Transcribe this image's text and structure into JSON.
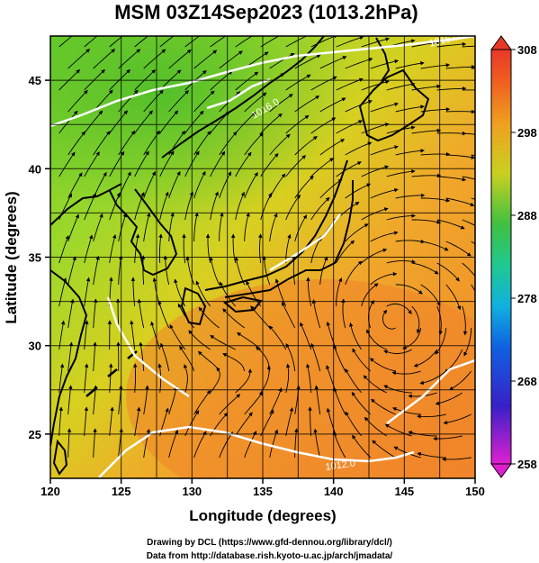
{
  "title": "MSM 03Z14Sep2023 (1013.2hPa)",
  "map": {
    "lon_range": [
      120,
      150
    ],
    "lat_range": [
      22.5,
      47.5
    ],
    "x_label": "Longitude (degrees)",
    "y_label": "Latitude  (degrees)",
    "x_ticks": [
      "120",
      "125",
      "130",
      "135",
      "140",
      "145",
      "150"
    ],
    "y_ticks": [
      "25",
      "30",
      "35",
      "40",
      "45"
    ],
    "contour_labels": [
      "1016.0",
      "1016.0",
      "1012.0"
    ],
    "colors": {
      "cold": "#4bbf2a",
      "warm": "#f08a2a",
      "coast": "#000000",
      "isobar": "#ffffff"
    }
  },
  "colorbar": {
    "min": 258,
    "max": 308,
    "ticks": [
      "308",
      "298",
      "288",
      "278",
      "268",
      "258"
    ],
    "stops": [
      "#e020d0",
      "#2020d0",
      "#10a0e8",
      "#20c8a0",
      "#40c040",
      "#c8d020",
      "#f0a020",
      "#f06020",
      "#e83828"
    ]
  },
  "credits": [
    "Drawing by DCL (https://www.gfd-dennou.org/library/dcl/)",
    "Data from http://database.rish.kyoto-u.ac.jp/arch/jmadata/"
  ]
}
